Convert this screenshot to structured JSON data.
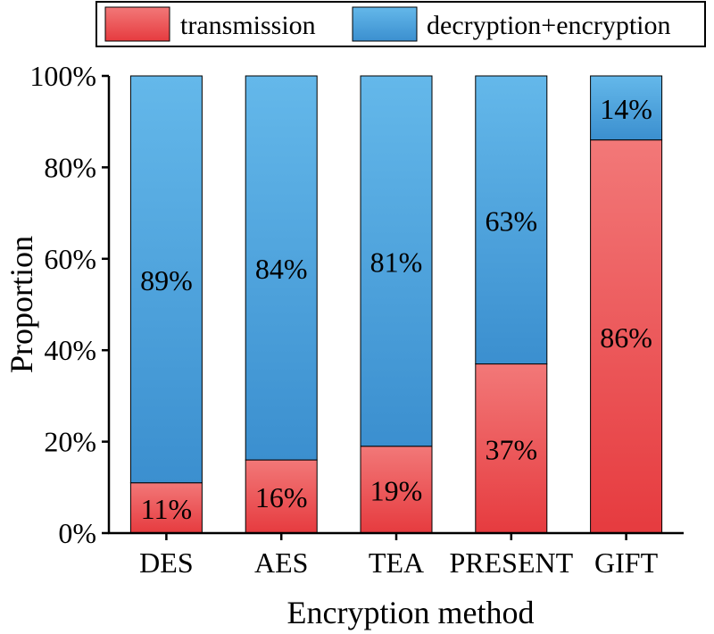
{
  "chart_data": {
    "type": "bar",
    "stacked": true,
    "percent": true,
    "title": "",
    "xlabel": "Encryption method",
    "ylabel": "Proportion",
    "ylim": [
      0,
      100
    ],
    "yticks": [
      "0%",
      "20%",
      "40%",
      "60%",
      "80%",
      "100%"
    ],
    "grid": false,
    "legend_position": "top",
    "categories": [
      "DES",
      "AES",
      "TEA",
      "PRESENT",
      "GIFT"
    ],
    "series": [
      {
        "name": "transmission",
        "values": [
          11,
          16,
          19,
          37,
          86
        ],
        "labels": [
          "11%",
          "16%",
          "19%",
          "37%",
          "86%"
        ],
        "color": "#e8404a"
      },
      {
        "name": "decryption+encryption",
        "values": [
          89,
          84,
          81,
          63,
          14
        ],
        "labels": [
          "89%",
          "84%",
          "81%",
          "63%",
          "14%"
        ],
        "color": "#4da3dc"
      }
    ]
  }
}
